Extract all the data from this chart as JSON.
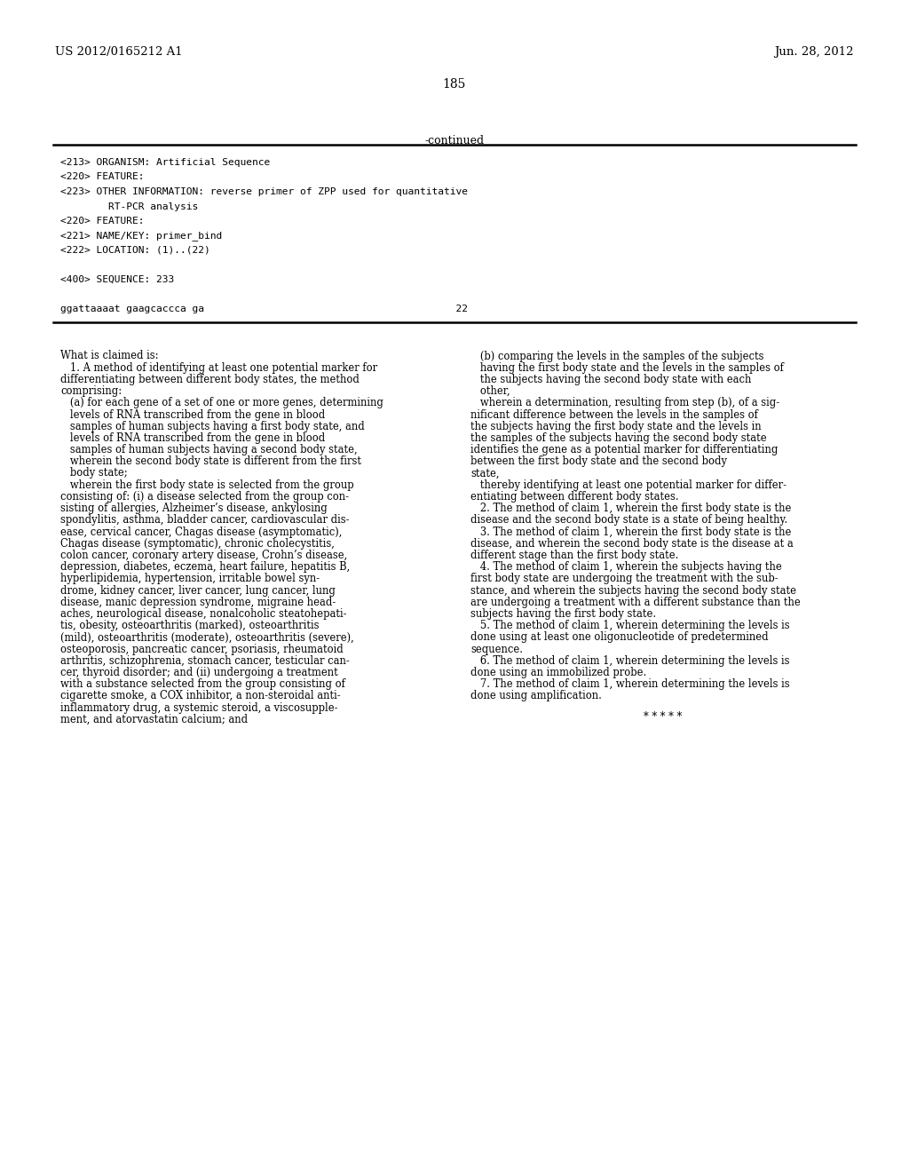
{
  "background_color": "#ffffff",
  "header_left": "US 2012/0165212 A1",
  "header_right": "Jun. 28, 2012",
  "page_number": "185",
  "continued_text": "-continued",
  "mono_lines": [
    "<213> ORGANISM: Artificial Sequence",
    "<220> FEATURE:",
    "<223> OTHER INFORMATION: reverse primer of ZPP used for quantitative",
    "        RT-PCR analysis",
    "<220> FEATURE:",
    "<221> NAME/KEY: primer_bind",
    "<222> LOCATION: (1)..(22)",
    "",
    "<400> SEQUENCE: 233",
    "",
    "ggattaaaat gaagcaccca ga                                          22"
  ],
  "left_col_lines": [
    "What is claimed is:",
    "   1. A method of identifying at least one potential marker for",
    "differentiating between different body states, the method",
    "comprising:",
    "   (a) for each gene of a set of one or more genes, determining",
    "   levels of RNA transcribed from the gene in blood",
    "   samples of human subjects having a first body state, and",
    "   levels of RNA transcribed from the gene in blood",
    "   samples of human subjects having a second body state,",
    "   wherein the second body state is different from the first",
    "   body state;",
    "   wherein the first body state is selected from the group",
    "consisting of: (i) a disease selected from the group con-",
    "sisting of allergies, Alzheimer’s disease, ankylosing",
    "spondylitis, asthma, bladder cancer, cardiovascular dis-",
    "ease, cervical cancer, Chagas disease (asymptomatic),",
    "Chagas disease (symptomatic), chronic cholecystitis,",
    "colon cancer, coronary artery disease, Crohn’s disease,",
    "depression, diabetes, eczema, heart failure, hepatitis B,",
    "hyperlipidemia, hypertension, irritable bowel syn-",
    "drome, kidney cancer, liver cancer, lung cancer, lung",
    "disease, manic depression syndrome, migraine head-",
    "aches, neurological disease, nonalcoholic steatohepati-",
    "tis, obesity, osteoarthritis (marked), osteoarthritis",
    "(mild), osteoarthritis (moderate), osteoarthritis (severe),",
    "osteoporosis, pancreatic cancer, psoriasis, rheumatoid",
    "arthritis, schizophrenia, stomach cancer, testicular can-",
    "cer, thyroid disorder; and (ii) undergoing a treatment",
    "with a substance selected from the group consisting of",
    "cigarette smoke, a COX inhibitor, a non-steroidal anti-",
    "inflammatory drug, a systemic steroid, a viscosupple-",
    "ment, and atorvastatin calcium; and"
  ],
  "right_col_lines": [
    "   (b) comparing the levels in the samples of the subjects",
    "   having the first body state and the levels in the samples of",
    "   the subjects having the second body state with each",
    "   other,",
    "   wherein a determination, resulting from step (b), of a sig-",
    "nificant difference between the levels in the samples of",
    "the subjects having the first body state and the levels in",
    "the samples of the subjects having the second body state",
    "identifies the gene as a potential marker for differentiating",
    "between the first body state and the second body",
    "state,",
    "   thereby identifying at least one potential marker for differ-",
    "entiating between different body states.",
    "   2. The method of claim 1, wherein the first body state is the",
    "disease and the second body state is a state of being healthy.",
    "   3. The method of claim 1, wherein the first body state is the",
    "disease, and wherein the second body state is the disease at a",
    "different stage than the first body state.",
    "   4. The method of claim 1, wherein the subjects having the",
    "first body state are undergoing the treatment with the sub-",
    "stance, and wherein the subjects having the second body state",
    "are undergoing a treatment with a different substance than the",
    "subjects having the first body state.",
    "   5. The method of claim 1, wherein determining the levels is",
    "done using at least one oligonucleotide of predetermined",
    "sequence.",
    "   6. The method of claim 1, wherein determining the levels is",
    "done using an immobilized probe.",
    "   7. The method of claim 1, wherein determining the levels is",
    "done using amplification."
  ],
  "stars": "* * * * *"
}
